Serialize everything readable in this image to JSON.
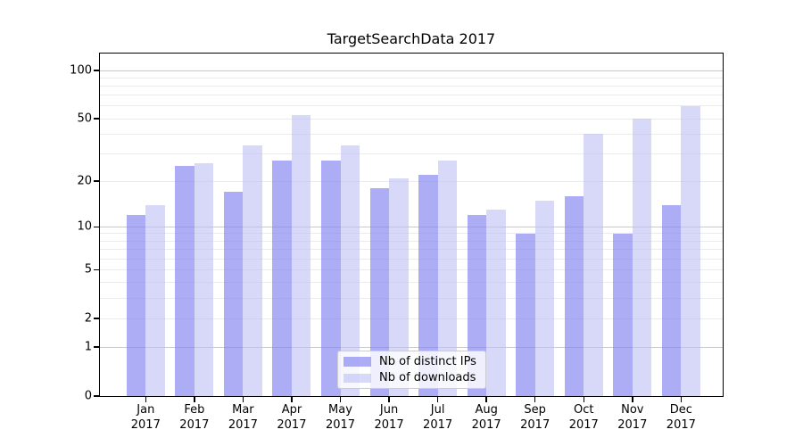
{
  "chart_data": {
    "type": "bar",
    "title": "TargetSearchData 2017",
    "categories": [
      "Jan 2017",
      "Feb 2017",
      "Mar 2017",
      "Apr 2017",
      "May 2017",
      "Jun 2017",
      "Jul 2017",
      "Aug 2017",
      "Sep 2017",
      "Oct 2017",
      "Nov 2017",
      "Dec 2017"
    ],
    "series": [
      {
        "name": "Nb of distinct IPs",
        "color": "#8282f0",
        "alpha": 0.66,
        "values": [
          12,
          25,
          17,
          27,
          27,
          18,
          22,
          12,
          9,
          16,
          9,
          14
        ]
      },
      {
        "name": "Nb of downloads",
        "color": "#bebef5",
        "alpha": 0.6,
        "values": [
          14,
          26,
          34,
          53,
          34,
          21,
          27,
          13,
          15,
          40,
          50,
          60
        ]
      }
    ],
    "xlabel": "",
    "ylabel": "",
    "yscale": "log1p",
    "ylim": [
      0,
      120
    ],
    "yticks": [
      0,
      1,
      2,
      5,
      10,
      20,
      50,
      100
    ],
    "gridlines_major": [
      1,
      10,
      100
    ],
    "gridlines_minor": [
      2,
      3,
      4,
      5,
      6,
      7,
      8,
      9,
      20,
      30,
      40,
      50,
      60,
      70,
      80,
      90
    ],
    "grid": true,
    "legend_position": "lower center"
  },
  "colors": {
    "background": "#ffffff",
    "grid_major": "#c9c9c9",
    "grid_minor": "#ebebeb",
    "spine": "#000000",
    "text": "#000000",
    "legend_border": "#cccccc"
  }
}
